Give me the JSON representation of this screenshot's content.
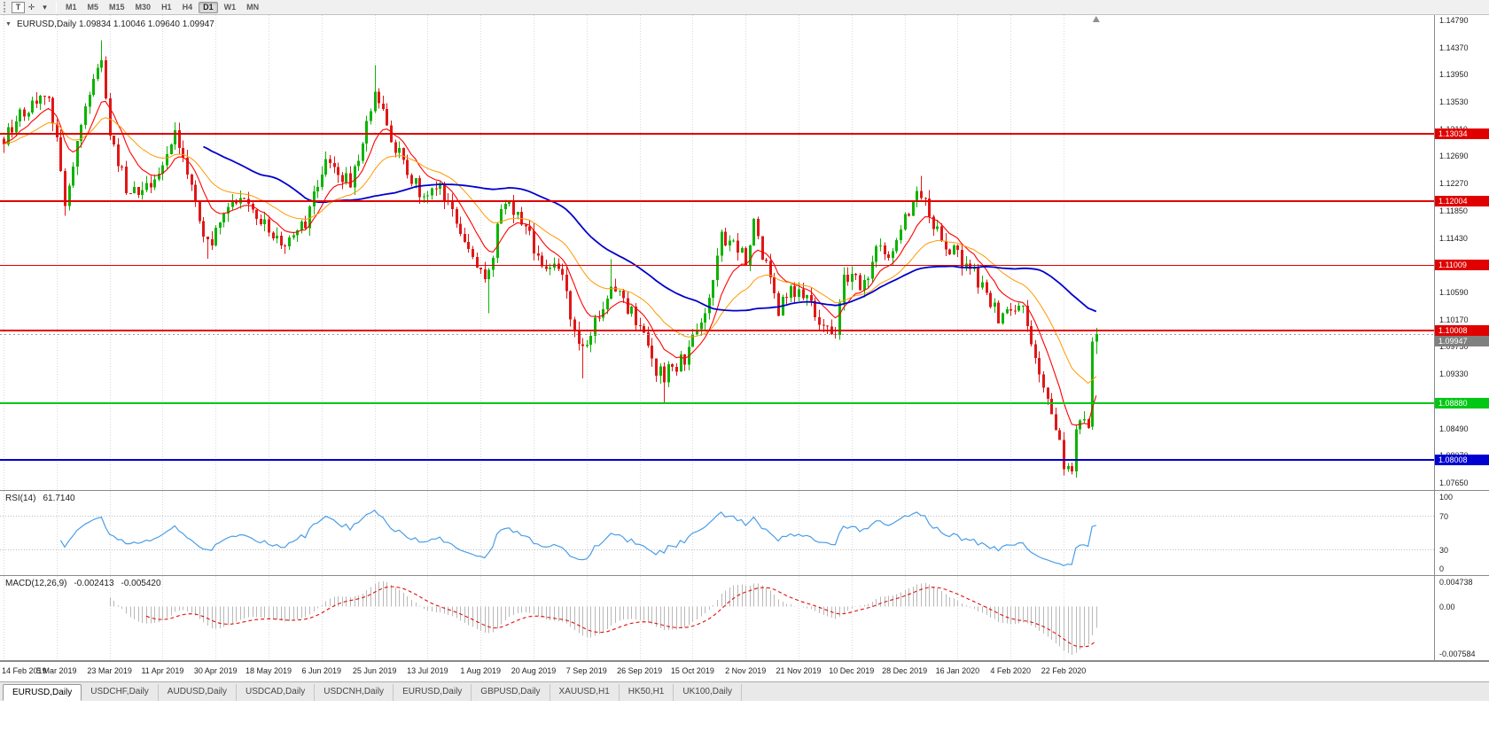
{
  "toolbar": {
    "text_tool_label": "T",
    "crosshair_icon": "✛",
    "dropdown_icon": "▾",
    "timeframes": [
      "M1",
      "M5",
      "M15",
      "M30",
      "H1",
      "H4",
      "D1",
      "W1",
      "MN"
    ],
    "active_timeframe": "D1"
  },
  "chart_header": {
    "collapse_icon": "▼",
    "symbol_ohlc": "EURUSD,Daily 1.09834 1.10046 1.09640 1.09947"
  },
  "price_scale": {
    "ticks": [
      "1.14790",
      "1.14370",
      "1.13950",
      "1.13530",
      "1.13110",
      "1.12690",
      "1.12270",
      "1.11850",
      "1.11430",
      "1.11010",
      "1.10590",
      "1.10170",
      "1.09750",
      "1.09330",
      "1.08910",
      "1.08490",
      "1.08070",
      "1.07650"
    ]
  },
  "levels": [
    {
      "label": "1.13034",
      "value": 1.13034,
      "color": "#e00000",
      "thickness": 2
    },
    {
      "label": "1.12004",
      "value": 1.12004,
      "color": "#e00000",
      "thickness": 2
    },
    {
      "label": "1.11009",
      "value": 1.11009,
      "color": "#e00000",
      "thickness": 1
    },
    {
      "label": "1.10008",
      "value": 1.10008,
      "color": "#e00000",
      "thickness": 2
    },
    {
      "label": "1.08880",
      "value": 1.0888,
      "color": "#00c814",
      "thickness": 2
    },
    {
      "label": "1.08008",
      "value": 1.08008,
      "color": "#0000d2",
      "thickness": 2
    }
  ],
  "current_price": {
    "label": "1.09947",
    "value": 1.09947,
    "color": "#808080"
  },
  "rsi": {
    "label": "RSI(14)",
    "value": "61.7140",
    "scale": [
      "100",
      "70",
      "30",
      "0"
    ],
    "levels": [
      70,
      30
    ],
    "line_color": "#4a9ee8"
  },
  "macd": {
    "label": "MACD(12,26,9)",
    "value_main": "-0.002413",
    "value_signal": "-0.005420",
    "scale_top": "0.004738",
    "scale_zero": "0.00",
    "scale_bottom": "-0.007584",
    "histogram_color": "#b8b8b8",
    "signal_color": "#e01010"
  },
  "time_axis": {
    "dates": [
      "14 Feb 2019",
      "5 Mar 2019",
      "23 Mar 2019",
      "11 Apr 2019",
      "30 Apr 2019",
      "18 May 2019",
      "6 Jun 2019",
      "25 Jun 2019",
      "13 Jul 2019",
      "1 Aug 2019",
      "20 Aug 2019",
      "7 Sep 2019",
      "26 Sep 2019",
      "15 Oct 2019",
      "2 Nov 2019",
      "21 Nov 2019",
      "10 Dec 2019",
      "28 Dec 2019",
      "16 Jan 2020",
      "4 Feb 2020",
      "22 Feb 2020"
    ]
  },
  "tabs": {
    "items": [
      "EURUSD,Daily",
      "USDCHF,Daily",
      "AUDUSD,Daily",
      "USDCAD,Daily",
      "USDCNH,Daily",
      "EURUSD,Daily",
      "GBPUSD,Daily",
      "XAUUSD,H1",
      "HK50,H1",
      "UK100,Daily"
    ],
    "active_index": 0
  },
  "chart_data": {
    "type": "candlestick",
    "symbol": "EURUSD",
    "timeframe": "Daily",
    "ohlc_current": {
      "open": 1.09834,
      "high": 1.10046,
      "low": 1.0964,
      "close": 1.09947
    },
    "x_range": [
      "14 Feb 2019",
      "22 Feb 2020"
    ],
    "y_range": [
      1.0754,
      1.1487
    ],
    "n_candles": 269,
    "candles_per_tick": 13,
    "horizontal_levels": [
      1.13034,
      1.12004,
      1.11009,
      1.10008,
      1.0888,
      1.08008
    ],
    "price_anchors": [
      [
        0,
        1.1296
      ],
      [
        4,
        1.1338
      ],
      [
        10,
        1.1368
      ],
      [
        13,
        1.1306
      ],
      [
        15,
        1.1196
      ],
      [
        19,
        1.1325
      ],
      [
        24,
        1.1415
      ],
      [
        26,
        1.1302
      ],
      [
        30,
        1.1222
      ],
      [
        36,
        1.1218
      ],
      [
        42,
        1.13
      ],
      [
        50,
        1.1135
      ],
      [
        54,
        1.1172
      ],
      [
        59,
        1.1212
      ],
      [
        65,
        1.1158
      ],
      [
        69,
        1.1125
      ],
      [
        74,
        1.1168
      ],
      [
        79,
        1.1275
      ],
      [
        85,
        1.1225
      ],
      [
        91,
        1.137
      ],
      [
        96,
        1.1285
      ],
      [
        102,
        1.121
      ],
      [
        107,
        1.1215
      ],
      [
        113,
        1.114
      ],
      [
        118,
        1.1078
      ],
      [
        119,
        1.1085
      ],
      [
        122,
        1.12
      ],
      [
        127,
        1.117
      ],
      [
        132,
        1.11
      ],
      [
        137,
        1.1092
      ],
      [
        140,
        1.0992
      ],
      [
        142,
        1.0972
      ],
      [
        149,
        1.1065
      ],
      [
        155,
        1.1018
      ],
      [
        160,
        1.094
      ],
      [
        162,
        1.0932
      ],
      [
        167,
        1.0958
      ],
      [
        172,
        1.1032
      ],
      [
        176,
        1.115
      ],
      [
        182,
        1.111
      ],
      [
        184,
        1.1162
      ],
      [
        190,
        1.1035
      ],
      [
        195,
        1.107
      ],
      [
        200,
        1.1015
      ],
      [
        204,
        1.1
      ],
      [
        206,
        1.108
      ],
      [
        211,
        1.1072
      ],
      [
        214,
        1.113
      ],
      [
        218,
        1.112
      ],
      [
        222,
        1.1185
      ],
      [
        225,
        1.1212
      ],
      [
        228,
        1.116
      ],
      [
        233,
        1.1122
      ],
      [
        238,
        1.109
      ],
      [
        244,
        1.102
      ],
      [
        247,
        1.1032
      ],
      [
        250,
        1.1042
      ],
      [
        253,
        1.0946
      ],
      [
        257,
        1.0872
      ],
      [
        260,
        1.0792
      ],
      [
        262,
        1.0785
      ],
      [
        263,
        1.0848
      ],
      [
        265,
        1.0852
      ],
      [
        266,
        1.0855
      ],
      [
        267,
        1.0983
      ],
      [
        268,
        1.09947
      ]
    ],
    "overrides": {
      "15": {
        "l": 1.1177
      },
      "24": {
        "h": 1.1448
      },
      "50": {
        "l": 1.1111
      },
      "91": {
        "h": 1.141
      },
      "119": {
        "l": 1.1027
      },
      "142": {
        "l": 1.0926
      },
      "149": {
        "h": 1.111
      },
      "162": {
        "l": 1.0888
      },
      "225": {
        "h": 1.1239
      },
      "262": {
        "l": 1.0778
      },
      "267": {
        "o": 1.0852,
        "h": 1.099,
        "l": 1.0847,
        "c": 1.0983
      },
      "268": {
        "o": 1.09834,
        "h": 1.10046,
        "l": 1.0964,
        "c": 1.09947
      }
    },
    "colors": {
      "up": "#0eb300",
      "down": "#e01717",
      "ma_fast": "#ff0000",
      "ma_mid": "#ff9900",
      "ma_slow": "#0000cc"
    },
    "moving_averages": [
      {
        "type": "ema",
        "period": 10,
        "color_key": "ma_fast"
      },
      {
        "type": "ema",
        "period": 25,
        "color_key": "ma_mid"
      },
      {
        "type": "sma",
        "period": 50,
        "color_key": "ma_slow"
      }
    ],
    "indicators": {
      "rsi_period": 14,
      "macd": [
        12,
        26,
        9
      ]
    }
  }
}
